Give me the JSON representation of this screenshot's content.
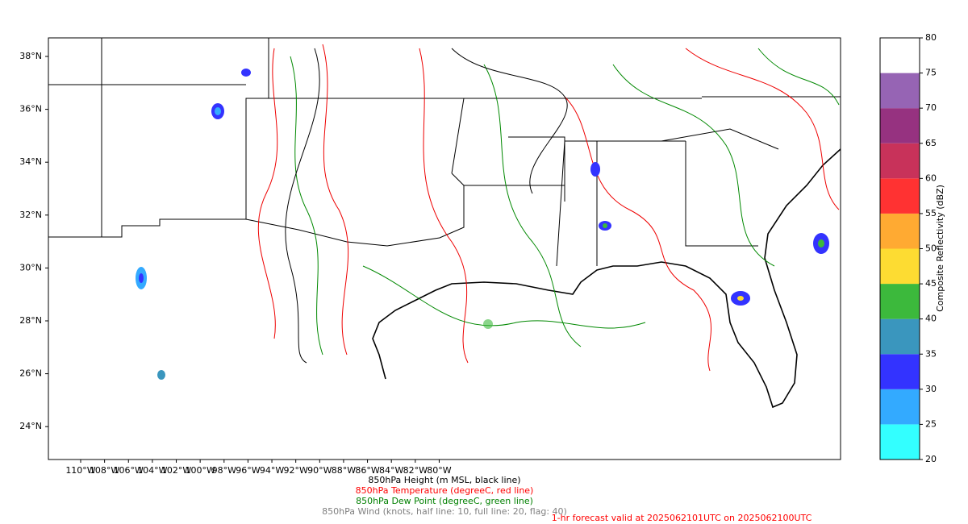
{
  "map": {
    "lon_labels": [
      "110°W",
      "108°W",
      "106°W",
      "104°W",
      "102°W",
      "100°W",
      "98°W",
      "96°W",
      "94°W",
      "92°W",
      "90°W",
      "88°W",
      "86°W",
      "84°W",
      "82°W",
      "80°W"
    ],
    "lat_labels": [
      "38°N",
      "36°N",
      "34°N",
      "32°N",
      "30°N",
      "28°N",
      "26°N",
      "24°N"
    ]
  },
  "colorbar": {
    "label": "Composite Reflectivity (dBZ)",
    "ticks": [
      20,
      25,
      30,
      35,
      40,
      45,
      50,
      55,
      60,
      65,
      70,
      75,
      80
    ],
    "colors": [
      "#33ffff",
      "#33aaff",
      "#3333ff",
      "#3a96be",
      "#3cb93c",
      "#fddc32",
      "#ffaa32",
      "#ff3232",
      "#c8325a",
      "#963280",
      "#9664b4",
      "#ffffff"
    ]
  },
  "captions": [
    {
      "text": "850hPa Height (m MSL, black line)",
      "color": "#000000"
    },
    {
      "text": "850hPa Temperature (degreeC, red line)",
      "color": "#ff0000"
    },
    {
      "text": "850hPa Dew Point (degreeC, green line)",
      "color": "#008000"
    },
    {
      "text": "850hPa Wind (knots, half line: 10, full line: 20, flag: 40)",
      "color": "#808080"
    }
  ],
  "footer": "1-hr forecast valid at 2025062101UTC on 2025062100UTC"
}
